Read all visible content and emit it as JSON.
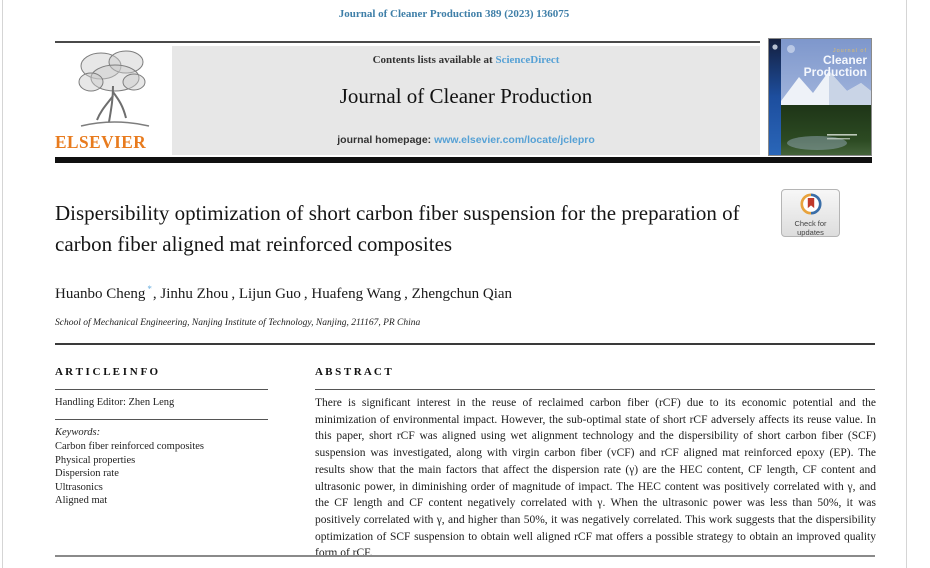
{
  "colors": {
    "citation_blue": "#3f7fa8",
    "link_blue": "#56a1d5",
    "elsevier_orange": "#e87b1e",
    "banner_gray": "#e7e7e7",
    "rule_black": "#101010",
    "badge_red": "#c0392b",
    "badge_yellow": "#e8a33d",
    "badge_blue": "#3a6ea8"
  },
  "page": {
    "citation": "Journal of Cleaner Production 389 (2023) 136075"
  },
  "header": {
    "contents_prefix": "Contents lists available at ",
    "sciencedirect": "ScienceDirect",
    "journal_title": "Journal of Cleaner Production",
    "homepage_prefix": "journal homepage: ",
    "homepage_url": "www.elsevier.com/locate/jclepro",
    "publisher": "ELSEVIER"
  },
  "cover": {
    "title_line1": "Journal of",
    "title_line2": "Cleaner",
    "title_line3": "Production"
  },
  "badge": {
    "line1": "Check for",
    "line2": "updates"
  },
  "article": {
    "title": "Dispersibility optimization of short carbon fiber suspension for the preparation of carbon fiber aligned mat reinforced composites",
    "authors": [
      {
        "name": "Huanbo Cheng",
        "marker": "*",
        "sep": ", "
      },
      {
        "name": "Jinhu Zhou",
        "marker": "",
        "sep": ", "
      },
      {
        "name": "Lijun Guo",
        "marker": "",
        "sep": ", "
      },
      {
        "name": "Huafeng Wang",
        "marker": "",
        "sep": ", "
      },
      {
        "name": "Zhengchun Qian",
        "marker": "",
        "sep": ""
      }
    ],
    "affiliation": "School of Mechanical Engineering, Nanjing Institute of Technology, Nanjing, 211167, PR China"
  },
  "article_info": {
    "heading": "A R T I C L E  I N F O",
    "handling_editor": "Handling Editor: Zhen Leng",
    "keywords_label": "Keywords:",
    "keywords": [
      "Carbon fiber reinforced composites",
      "Physical properties",
      "Dispersion rate",
      "Ultrasonics",
      "Aligned mat"
    ]
  },
  "abstract": {
    "heading": "A B S T R A C T",
    "text": "There is significant interest in the reuse of reclaimed carbon fiber (rCF) due to its economic potential and the minimization of environmental impact. However, the sub-optimal state of short rCF adversely affects its reuse value. In this paper, short rCF was aligned using wet alignment technology and the dispersibility of short carbon fiber (SCF) suspension was investigated, along with virgin carbon fiber (vCF) and rCF aligned mat reinforced epoxy (EP). The results show that the main factors that affect the dispersion rate (γ) are the HEC content, CF length, CF content and ultrasonic power, in diminishing order of magnitude of impact. The HEC content was positively correlated with γ, and the CF length and CF content negatively correlated with γ. When the ultrasonic power was less than 50%, it was positively correlated with γ, and higher than 50%, it was negatively correlated. This work suggests that the dispersibility optimization of SCF suspension to obtain well aligned rCF mat offers a possible strategy to obtain an improved quality form of rCF."
  }
}
